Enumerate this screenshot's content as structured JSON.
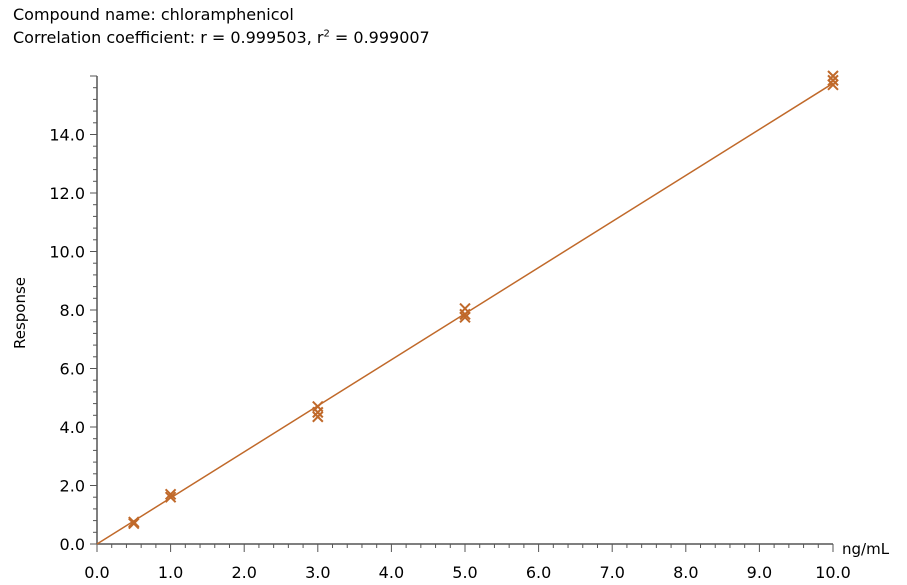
{
  "header": {
    "compound_line": "Compound name: chloramphenicol",
    "corr_prefix": "Correlation coefficient: r = 0.999503, r",
    "corr_sup": "2",
    "corr_suffix": " = 0.999007"
  },
  "chart_data": {
    "type": "scatter",
    "xlabel": "ng/mL",
    "ylabel": "Response",
    "xlim": [
      0,
      10
    ],
    "ylim": [
      0,
      16
    ],
    "x_ticks": [
      "0.0",
      "1.0",
      "2.0",
      "3.0",
      "4.0",
      "5.0",
      "6.0",
      "7.0",
      "8.0",
      "9.0",
      "10.0"
    ],
    "y_ticks": [
      "0.0",
      "2.0",
      "4.0",
      "6.0",
      "8.0",
      "10.0",
      "12.0",
      "14.0"
    ],
    "grid": false,
    "colors": {
      "series": "#c0692a",
      "axis": "#555555"
    },
    "series": [
      {
        "marker": "x",
        "points": [
          {
            "x": 0.5,
            "y": 0.75
          },
          {
            "x": 0.5,
            "y": 0.7
          },
          {
            "x": 1.0,
            "y": 1.7
          },
          {
            "x": 1.0,
            "y": 1.6
          },
          {
            "x": 3.0,
            "y": 4.7
          },
          {
            "x": 3.0,
            "y": 4.5
          },
          {
            "x": 3.0,
            "y": 4.35
          },
          {
            "x": 5.0,
            "y": 8.05
          },
          {
            "x": 5.0,
            "y": 7.85
          },
          {
            "x": 5.0,
            "y": 7.75
          },
          {
            "x": 10.0,
            "y": 16.0
          },
          {
            "x": 10.0,
            "y": 15.85
          },
          {
            "x": 10.0,
            "y": 15.7
          }
        ]
      }
    ],
    "fit_line": {
      "slope": 1.575,
      "intercept": 0.0
    }
  }
}
